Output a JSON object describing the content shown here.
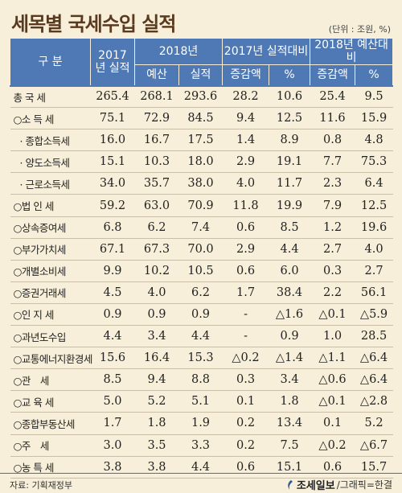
{
  "title": "세목별 국세수입 실적",
  "unit": "(단위 : 조원, %)",
  "header": {
    "category": "구 분",
    "col2017": "2017년 실적",
    "col2018": "2018년",
    "col2018_budget": "예산",
    "col2018_actual": "실적",
    "vs2017": "2017년 실적대비",
    "vs2018": "2018년 예산대비",
    "diff": "증감액",
    "pct": "%"
  },
  "rows": [
    {
      "label": "총 국 세",
      "sub": false,
      "v2017": "265.4",
      "budget": "268.1",
      "actual": "293.6",
      "d2017": "28.2",
      "p2017": "10.6",
      "d2018": "25.4",
      "p2018": "9.5"
    },
    {
      "label": "○소 득 세",
      "sub": false,
      "v2017": "75.1",
      "budget": "72.9",
      "actual": "84.5",
      "d2017": "9.4",
      "p2017": "12.5",
      "d2018": "11.6",
      "p2018": "15.9"
    },
    {
      "label": "· 종합소득세",
      "sub": true,
      "v2017": "16.0",
      "budget": "16.7",
      "actual": "17.5",
      "d2017": "1.4",
      "p2017": "8.9",
      "d2018": "0.8",
      "p2018": "4.8"
    },
    {
      "label": "· 양도소득세",
      "sub": true,
      "v2017": "15.1",
      "budget": "10.3",
      "actual": "18.0",
      "d2017": "2.9",
      "p2017": "19.1",
      "d2018": "7.7",
      "p2018": "75.3"
    },
    {
      "label": "· 근로소득세",
      "sub": true,
      "v2017": "34.0",
      "budget": "35.7",
      "actual": "38.0",
      "d2017": "4.0",
      "p2017": "11.7",
      "d2018": "2.3",
      "p2018": "6.4"
    },
    {
      "label": "○법 인 세",
      "sub": false,
      "v2017": "59.2",
      "budget": "63.0",
      "actual": "70.9",
      "d2017": "11.8",
      "p2017": "19.9",
      "d2018": "7.9",
      "p2018": "12.5"
    },
    {
      "label": "○상속증여세",
      "sub": false,
      "v2017": "6.8",
      "budget": "6.2",
      "actual": "7.4",
      "d2017": "0.6",
      "p2017": "8.5",
      "d2018": "1.2",
      "p2018": "19.6"
    },
    {
      "label": "○부가가치세",
      "sub": false,
      "v2017": "67.1",
      "budget": "67.3",
      "actual": "70.0",
      "d2017": "2.9",
      "p2017": "4.4",
      "d2018": "2.7",
      "p2018": "4.0"
    },
    {
      "label": "○개별소비세",
      "sub": false,
      "v2017": "9.9",
      "budget": "10.2",
      "actual": "10.5",
      "d2017": "0.6",
      "p2017": "6.0",
      "d2018": "0.3",
      "p2018": "2.7"
    },
    {
      "label": "○증권거래세",
      "sub": false,
      "v2017": "4.5",
      "budget": "4.0",
      "actual": "6.2",
      "d2017": "1.7",
      "p2017": "38.4",
      "d2018": "2.2",
      "p2018": "56.1"
    },
    {
      "label": "○인 지 세",
      "sub": false,
      "v2017": "0.9",
      "budget": "0.9",
      "actual": "0.9",
      "d2017": "-",
      "p2017": "△1.6",
      "d2018": "△0.1",
      "p2018": "△5.9"
    },
    {
      "label": "○과년도수입",
      "sub": false,
      "v2017": "4.4",
      "budget": "3.4",
      "actual": "4.4",
      "d2017": "-",
      "p2017": "0.9",
      "d2018": "1.0",
      "p2018": "28.5"
    },
    {
      "label": "○교통에너지환경세",
      "sub": false,
      "v2017": "15.6",
      "budget": "16.4",
      "actual": "15.3",
      "d2017": "△0.2",
      "p2017": "△1.4",
      "d2018": "△1.1",
      "p2018": "△6.4"
    },
    {
      "label": "○관　세",
      "sub": false,
      "v2017": "8.5",
      "budget": "9.4",
      "actual": "8.8",
      "d2017": "0.3",
      "p2017": "3.4",
      "d2018": "△0.6",
      "p2018": "△6.4"
    },
    {
      "label": "○교 육 세",
      "sub": false,
      "v2017": "5.0",
      "budget": "5.2",
      "actual": "5.1",
      "d2017": "0.1",
      "p2017": "1.8",
      "d2018": "△0.1",
      "p2018": "△2.8"
    },
    {
      "label": "○종합부동산세",
      "sub": false,
      "v2017": "1.7",
      "budget": "1.8",
      "actual": "1.9",
      "d2017": "0.2",
      "p2017": "13.4",
      "d2018": "0.1",
      "p2018": "5.2"
    },
    {
      "label": "○주　세",
      "sub": false,
      "v2017": "3.0",
      "budget": "3.5",
      "actual": "3.3",
      "d2017": "0.2",
      "p2017": "7.5",
      "d2018": "△0.2",
      "p2018": "△6.7"
    },
    {
      "label": "○농 특 세",
      "sub": false,
      "v2017": "3.8",
      "budget": "3.8",
      "actual": "4.4",
      "d2017": "0.6",
      "p2017": "15.1",
      "d2018": "0.6",
      "p2018": "15.7"
    }
  ],
  "footer": {
    "source": "자료: 기획재정부",
    "brand": "조세일보",
    "credit": "/그래픽=한결",
    "logo_icon": "brush-stroke-logo-icon"
  },
  "colors": {
    "background": "#f7efd9",
    "header": "#4f79b5",
    "title": "#5a3a1e"
  }
}
